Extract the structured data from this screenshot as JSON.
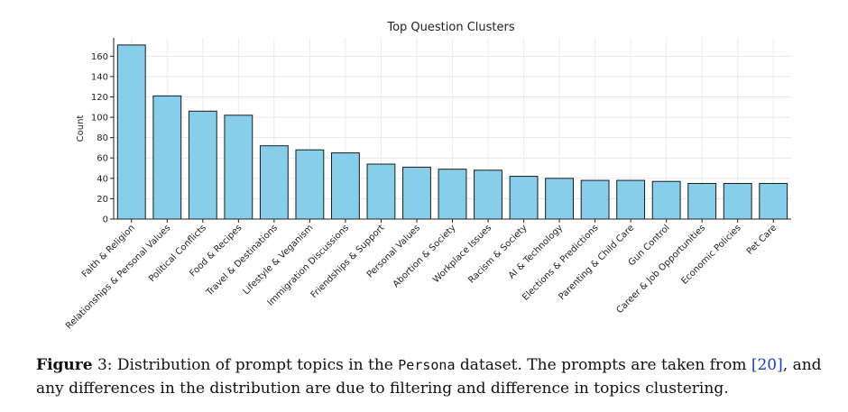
{
  "chart_data": {
    "type": "bar",
    "title": "Top Question Clusters",
    "xlabel": "",
    "ylabel": "Count",
    "ylim": [
      0,
      178
    ],
    "yticks": [
      0,
      20,
      40,
      60,
      80,
      100,
      120,
      140,
      160
    ],
    "grid": true,
    "legend": "none",
    "bar_color": "#87ceeb",
    "edge_color": "#1a1a1a",
    "categories": [
      "Faith & Religion",
      "Relationships & Personal Values",
      "Political Conflicts",
      "Food & Recipes",
      "Travel & Destinations",
      "Lifestyle & Veganism",
      "Immigration Discussions",
      "Friendships & Support",
      "Personal Values",
      "Abortion & Society",
      "Workplace Issues",
      "Racism & Society",
      "AI & Technology",
      "Elections & Predictions",
      "Parenting & Child Care",
      "Gun Control",
      "Career & Job Opportunities",
      "Economic Policies",
      "Pet Care"
    ],
    "values": [
      171,
      121,
      106,
      102,
      72,
      68,
      65,
      54,
      51,
      49,
      48,
      42,
      40,
      38,
      38,
      37,
      35,
      35,
      35
    ]
  },
  "caption": {
    "label": "Figure",
    "number": "3",
    "text_before": ": Distribution of prompt topics in the ",
    "dataset": "Persona",
    "text_middle": " dataset. The prompts are taken from ",
    "citation": "[20]",
    "text_after": ", and any differences in the distribution are due to filtering and difference in topics clustering."
  }
}
